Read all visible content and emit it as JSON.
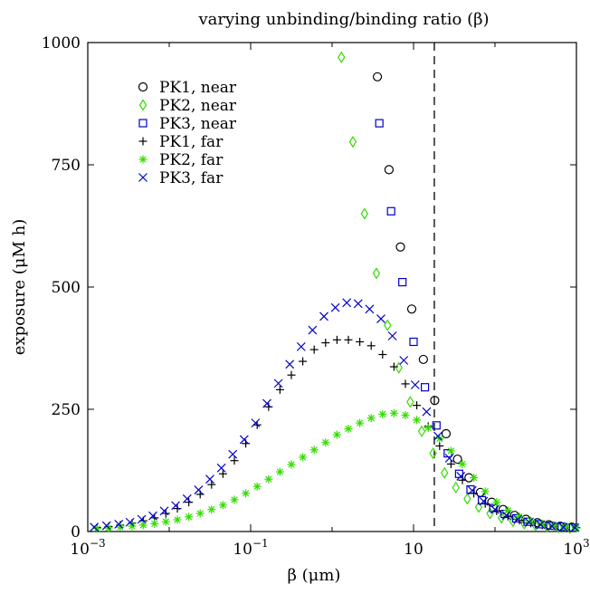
{
  "chart_data": {
    "type": "scatter",
    "title": "varying unbinding/binding ratio (β)",
    "xlabel": "β (μm)",
    "ylabel": "exposure (μM h)",
    "xscale": "log",
    "xlim": [
      0.001,
      1000
    ],
    "ylim": [
      0,
      1000
    ],
    "x_ticks": [
      {
        "value": 0.001,
        "base": "10",
        "exp": "−3"
      },
      {
        "value": 0.1,
        "base": "10",
        "exp": "−1"
      },
      {
        "value": 10,
        "base": "10",
        "exp": ""
      },
      {
        "value": 1000,
        "base": "10",
        "exp": "3"
      }
    ],
    "y_ticks": [
      0,
      250,
      500,
      750,
      1000
    ],
    "vline_x": 18,
    "legend_position": "top-left",
    "series": [
      {
        "name": "PK1, near",
        "marker": "circle",
        "color": "#000000",
        "x": [
          3.6,
          5.0,
          6.9,
          9.5,
          13.2,
          18.2,
          25.1,
          34.7,
          47.9,
          66.1,
          91.2,
          125.9,
          173.8,
          239.9,
          331.1,
          457.1,
          631.0,
          871.0
        ],
        "y": [
          930,
          740,
          582,
          455,
          352,
          268,
          200,
          148,
          110,
          80,
          60,
          45,
          33,
          25,
          18,
          14,
          11,
          9
        ]
      },
      {
        "name": "PK2, near",
        "marker": "diamond",
        "color": "#33dd00",
        "x": [
          1.3,
          1.8,
          2.5,
          3.5,
          4.8,
          6.6,
          9.1,
          12.6,
          17.4,
          24.0,
          33.1,
          45.7,
          63.1,
          87.1,
          120.2,
          166.0,
          229.1,
          316.2,
          436.5,
          602.6,
          832.0
        ],
        "y": [
          970,
          797,
          650,
          528,
          422,
          335,
          265,
          205,
          160,
          120,
          90,
          67,
          50,
          37,
          28,
          21,
          16,
          12,
          10,
          8,
          7
        ]
      },
      {
        "name": "PK3, near",
        "marker": "square",
        "color": "#0000cc",
        "x": [
          3.8,
          5.3,
          7.3,
          10.0,
          13.8,
          19.1,
          26.3,
          36.3,
          50.1,
          69.2,
          95.5,
          131.8,
          182.0,
          251.2,
          346.7,
          478.6,
          660.7,
          912.0
        ],
        "y": [
          835,
          655,
          510,
          388,
          295,
          217,
          160,
          118,
          86,
          64,
          48,
          36,
          27,
          20,
          15,
          12,
          10,
          8
        ]
      },
      {
        "name": "PK1, far",
        "marker": "plus",
        "color": "#000000",
        "x": [
          0.0013,
          0.0018,
          0.0025,
          0.0035,
          0.0048,
          0.0066,
          0.0091,
          0.0126,
          0.0174,
          0.024,
          0.0331,
          0.0457,
          0.0631,
          0.0871,
          0.1202,
          0.166,
          0.2291,
          0.3162,
          0.4365,
          0.6026,
          0.8318,
          1.148,
          1.585,
          2.188,
          3.02,
          4.169,
          5.754,
          7.943,
          10.96,
          15.14,
          20.89,
          28.84,
          39.81,
          54.95,
          75.86,
          104.7,
          144.5,
          199.5,
          275.4,
          380.2,
          524.8,
          724.4,
          1000
        ],
        "y": [
          8,
          10,
          13,
          17,
          22,
          28,
          37,
          47,
          60,
          76,
          96,
          118,
          145,
          180,
          218,
          255,
          290,
          320,
          348,
          372,
          386,
          392,
          392,
          388,
          380,
          362,
          337,
          302,
          258,
          215,
          175,
          138,
          105,
          78,
          57,
          42,
          31,
          23,
          17,
          13,
          11,
          9,
          8
        ]
      },
      {
        "name": "PK2, far",
        "marker": "asterisk",
        "color": "#33dd00",
        "x": [
          0.0013,
          0.0018,
          0.0025,
          0.0035,
          0.0048,
          0.0066,
          0.0091,
          0.0126,
          0.0174,
          0.024,
          0.0331,
          0.0457,
          0.0631,
          0.0871,
          0.1202,
          0.166,
          0.2291,
          0.3162,
          0.4365,
          0.6026,
          0.8318,
          1.148,
          1.585,
          2.188,
          3.02,
          4.169,
          5.754,
          7.943,
          10.96,
          15.14,
          20.89,
          28.84,
          39.81,
          54.95,
          75.86,
          104.7,
          144.5,
          199.5,
          275.4,
          380.2,
          524.8,
          724.4,
          1000
        ],
        "y": [
          6,
          7,
          9,
          11,
          13,
          16,
          20,
          24,
          30,
          37,
          45,
          54,
          65,
          78,
          92,
          107,
          122,
          137,
          152,
          167,
          182,
          198,
          210,
          222,
          232,
          240,
          242,
          238,
          228,
          212,
          190,
          165,
          138,
          110,
          82,
          60,
          43,
          31,
          22,
          16,
          12,
          9,
          7
        ]
      },
      {
        "name": "PK3, far",
        "marker": "cross",
        "color": "#0000cc",
        "x": [
          0.0012,
          0.0017,
          0.0024,
          0.0033,
          0.0046,
          0.0063,
          0.0087,
          0.012,
          0.0166,
          0.0229,
          0.0316,
          0.0437,
          0.0603,
          0.0832,
          0.1148,
          0.1585,
          0.2188,
          0.302,
          0.4169,
          0.5754,
          0.7943,
          1.096,
          1.514,
          2.089,
          2.884,
          3.981,
          5.495,
          7.586,
          10.47,
          14.45,
          19.95,
          27.54,
          38.02,
          52.48,
          72.44,
          100,
          138,
          190.5,
          263,
          363.1,
          501.2,
          691.8,
          955
        ],
        "y": [
          9,
          12,
          15,
          19,
          25,
          32,
          42,
          53,
          67,
          85,
          107,
          130,
          158,
          188,
          222,
          262,
          303,
          342,
          378,
          412,
          440,
          458,
          468,
          466,
          455,
          435,
          400,
          350,
          300,
          245,
          195,
          150,
          113,
          84,
          62,
          45,
          33,
          25,
          19,
          14,
          11,
          9,
          8
        ]
      }
    ]
  }
}
